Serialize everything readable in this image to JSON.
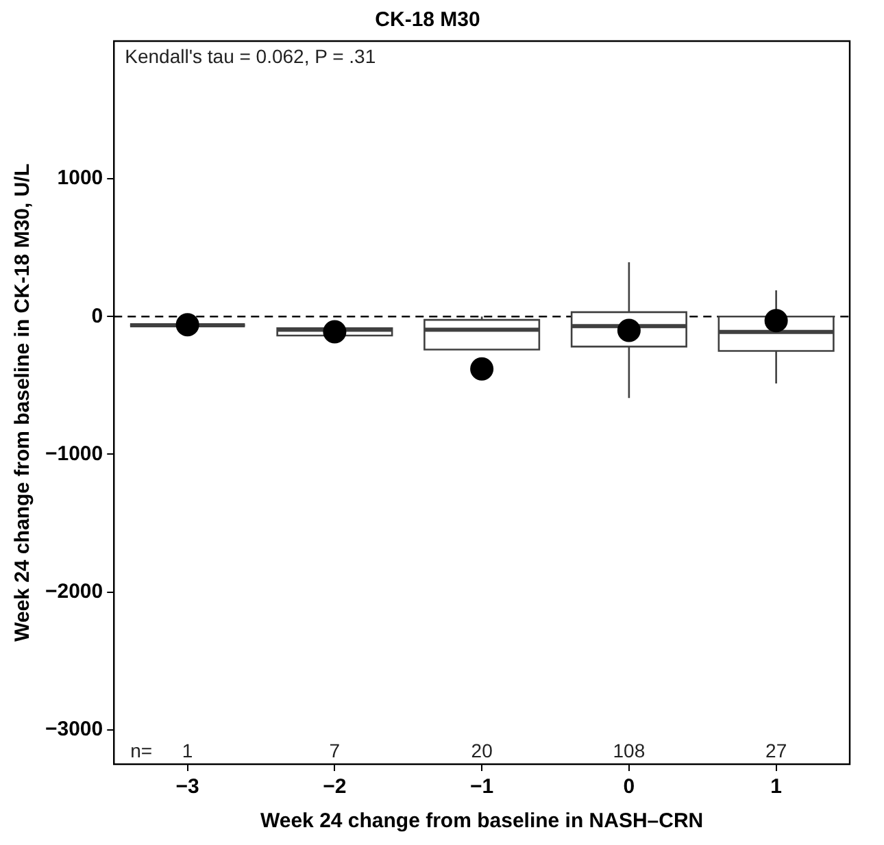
{
  "chart_data": {
    "type": "box",
    "title": "CK-18 M30",
    "xlabel": "Week 24 change from baseline in NASH–CRN",
    "ylabel": "Week 24 change from baseline in CK-18 M30, U/L",
    "categories": [
      "−3",
      "−2",
      "−1",
      "0",
      "1"
    ],
    "ylim": [
      -3250,
      2000
    ],
    "yticks": [
      -3000,
      -2000,
      -1000,
      0,
      1000
    ],
    "grid": false,
    "legend": false,
    "marker": "circle",
    "series": [
      {
        "type": "box",
        "color": "#404040",
        "boxes": [
          {
            "low": -63,
            "q1": -63,
            "median": -63,
            "q3": -63,
            "high": -63
          },
          {
            "low": -138,
            "q1": -138,
            "median": -95,
            "q3": -85,
            "high": -85
          },
          {
            "low": -240,
            "q1": -240,
            "median": -95,
            "q3": -24,
            "high": 0
          },
          {
            "low": -592,
            "q1": -218,
            "median": -70,
            "q3": 32,
            "high": 394
          },
          {
            "low": -486,
            "q1": -250,
            "median": -112,
            "q3": 0,
            "high": 190
          }
        ]
      },
      {
        "type": "scatter",
        "color": "#000000",
        "x": [
          "−3",
          "−2",
          "−1",
          "0",
          "1"
        ],
        "values": [
          -60,
          -110,
          -380,
          -100,
          -30
        ]
      }
    ],
    "ref_lines": [
      {
        "axis": "y",
        "value": 0,
        "line_style": "dashed",
        "color": "#000000"
      }
    ],
    "annotations": [
      "Kendall's tau = 0.062, P = .31",
      "n=",
      "1",
      "7",
      "20",
      "108",
      "27"
    ]
  }
}
